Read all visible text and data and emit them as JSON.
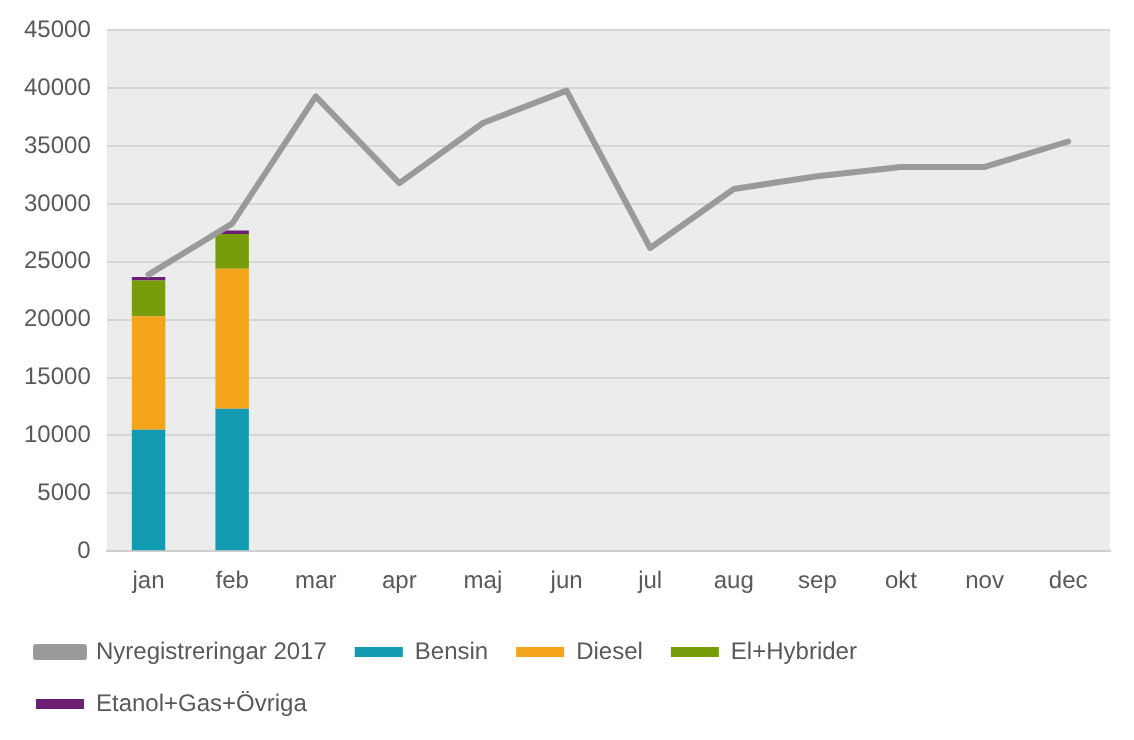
{
  "chart_data": {
    "type": "bar",
    "stacked": true,
    "categories": [
      "jan",
      "feb",
      "mar",
      "apr",
      "maj",
      "jun",
      "jul",
      "aug",
      "sep",
      "okt",
      "nov",
      "dec"
    ],
    "series": [
      {
        "name": "Bensin",
        "color": "#139bb2",
        "values": [
          10500,
          12300,
          null,
          null,
          null,
          null,
          null,
          null,
          null,
          null,
          null,
          null
        ]
      },
      {
        "name": "Diesel",
        "color": "#f4a51c",
        "values": [
          9800,
          12100,
          null,
          null,
          null,
          null,
          null,
          null,
          null,
          null,
          null,
          null
        ]
      },
      {
        "name": "El+Hybrider",
        "color": "#789d0a",
        "values": [
          3100,
          3000,
          null,
          null,
          null,
          null,
          null,
          null,
          null,
          null,
          null,
          null
        ]
      },
      {
        "name": "Etanol+Gas+Övriga",
        "color": "#6b1f73",
        "values": [
          300,
          300,
          null,
          null,
          null,
          null,
          null,
          null,
          null,
          null,
          null,
          null
        ]
      },
      {
        "name": "Nyregistreringar 2017",
        "type": "line",
        "color": "#9a9a9a",
        "values": [
          23900,
          28300,
          39300,
          31800,
          37000,
          39800,
          26200,
          31300,
          32400,
          33200,
          33200,
          35400
        ]
      }
    ],
    "ylim": [
      0,
      45000
    ],
    "yticks": [
      0,
      5000,
      10000,
      15000,
      20000,
      25000,
      30000,
      35000,
      40000,
      45000
    ],
    "grid": "y",
    "legend": "bottom",
    "marker": "none"
  }
}
